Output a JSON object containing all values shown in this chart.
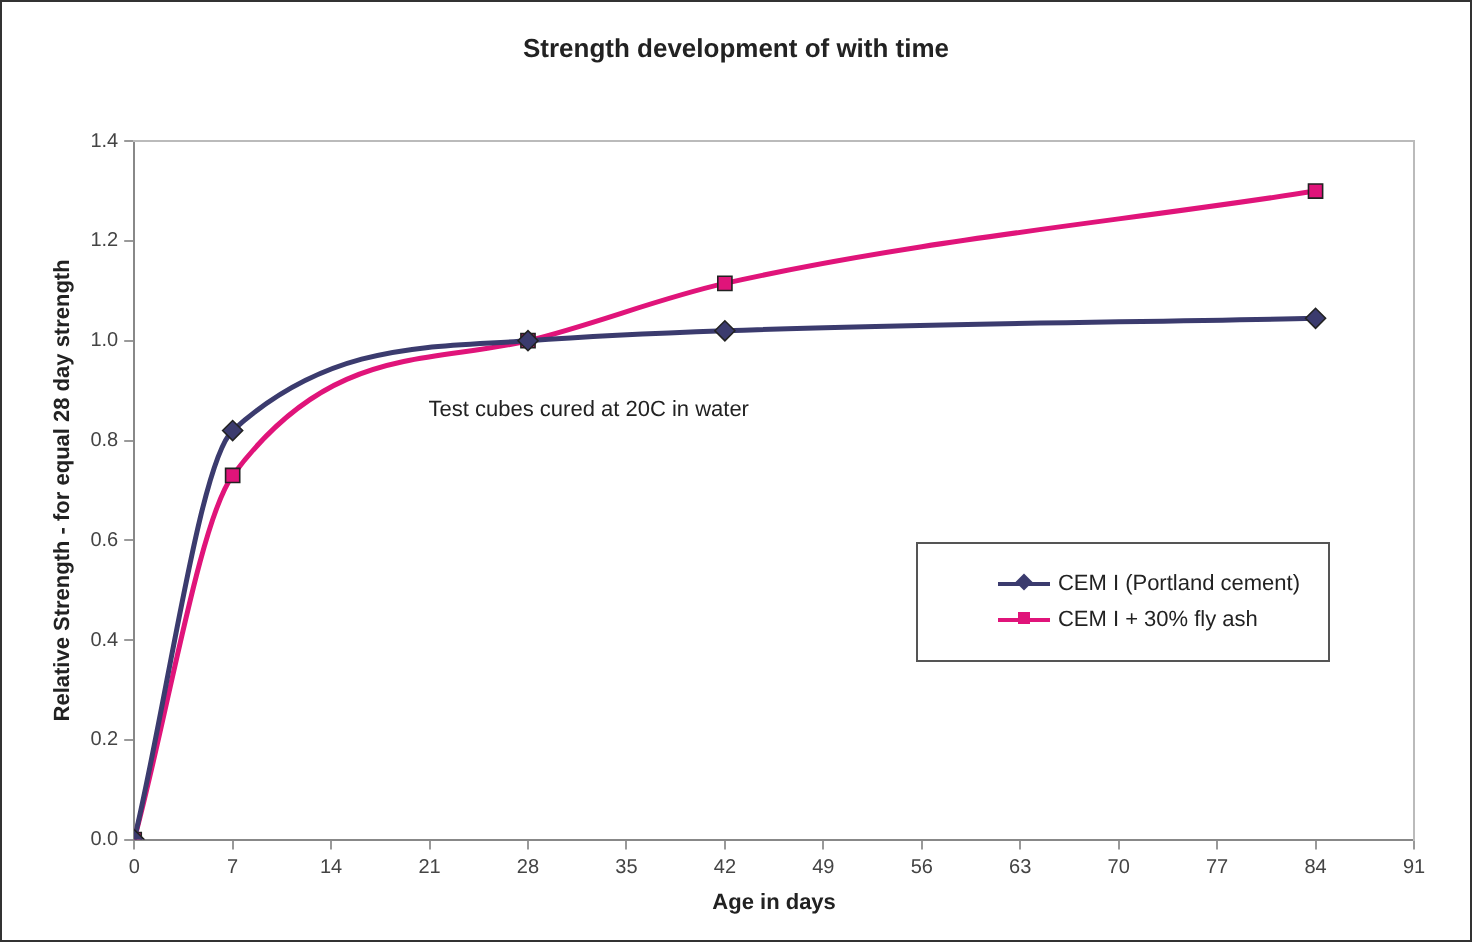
{
  "chart_data": {
    "type": "line",
    "title": "Strength development of with time",
    "xlabel": "Age in days",
    "ylabel": "Relative Strength - for equal 28 day strength",
    "x": [
      0,
      7,
      28,
      42,
      84
    ],
    "series": [
      {
        "name": "CEM I (Portland cement)",
        "color": "#3b3b6e",
        "marker": "diamond",
        "values": [
          0,
          0.82,
          1.0,
          1.02,
          1.045
        ]
      },
      {
        "name": "CEM I + 30% fly ash",
        "color": "#e0147a",
        "marker": "square",
        "values": [
          0,
          0.73,
          1.0,
          1.115,
          1.3
        ]
      }
    ],
    "xlim": [
      0,
      91
    ],
    "xticks": [
      0,
      7,
      14,
      21,
      28,
      35,
      42,
      49,
      56,
      63,
      70,
      77,
      84,
      91
    ],
    "ylim": [
      0,
      1.4
    ],
    "yticks": [
      {
        "value": 0,
        "label": "0.0"
      },
      0.2,
      0.4,
      0.6,
      0.8,
      {
        "value": 1,
        "label": "1.0"
      },
      1.2,
      1.4
    ],
    "annotations": [
      "Test cubes cured at 20C in water"
    ],
    "grid": false,
    "legend": "right",
    "line_style": "solid"
  }
}
